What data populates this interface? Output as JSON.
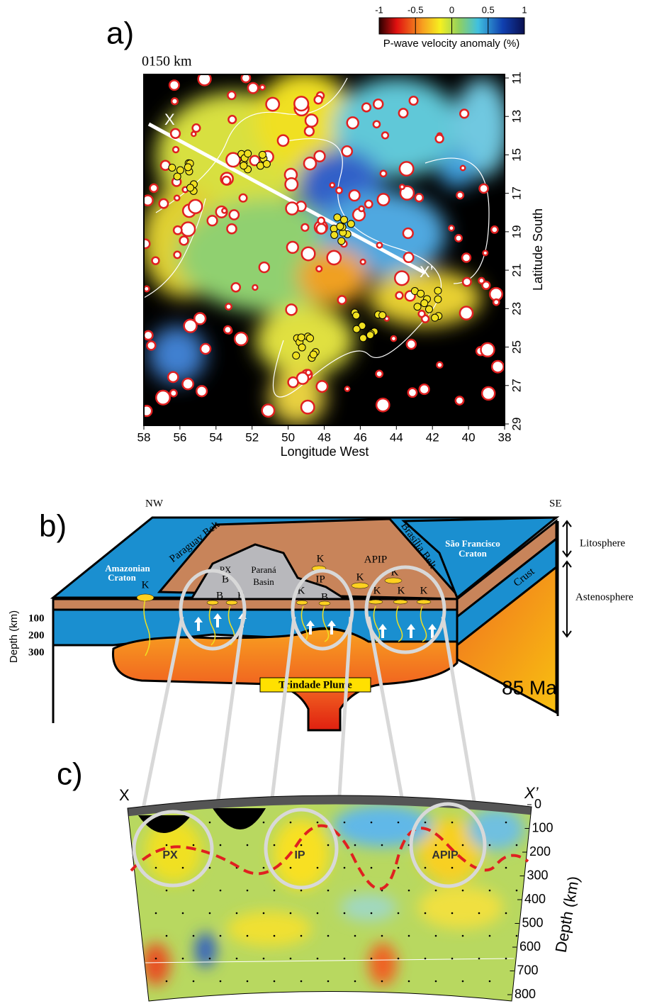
{
  "panel_a": {
    "label": "a)",
    "depth_label": "0150 km",
    "colorbar": {
      "title": "P-wave velocity anomaly (%)",
      "ticks": [
        -1,
        -0.5,
        0,
        0.5,
        1
      ]
    },
    "xticks": [
      58,
      56,
      54,
      52,
      50,
      48,
      46,
      44,
      42,
      40,
      38
    ],
    "yticks": [
      11,
      13,
      15,
      17,
      19,
      21,
      23,
      25,
      27,
      29
    ],
    "x_label": "Longitude West",
    "y_label": "Latitude South",
    "profile_start": "X",
    "profile_end": "X’"
  },
  "panel_b": {
    "label": "b)",
    "nw": "NW",
    "se": "SE",
    "amazonian": [
      "Amazonian",
      "Craton"
    ],
    "paraguay_belt": "Paraguay Belt",
    "px": "PX",
    "parana": [
      "Paraná",
      "Basin"
    ],
    "ip": "IP",
    "apip": "APIP",
    "brasilia_belt": "Brasília Belt",
    "sao_francisco": [
      "São Francisco",
      "Craton"
    ],
    "crust": "Crust",
    "litosphere": "Litosphere",
    "astenosphere": "Astenosphere",
    "plume": "Trindade Plume",
    "age": "85 Ma",
    "depth_label": "Depth (km)",
    "depth_ticks": [
      100,
      200,
      300
    ],
    "k_labels": [
      "K",
      "K",
      "K",
      "K",
      "K",
      "K",
      "K",
      "K"
    ],
    "b_labels": [
      "B",
      "B",
      "B",
      "B"
    ]
  },
  "panel_c": {
    "label": "c)",
    "x_start": "X",
    "x_end": "X’",
    "px": "PX",
    "ip": "IP",
    "apip": "APIP",
    "depth_label": "Depth (km)",
    "depth_ticks": [
      0,
      100,
      200,
      300,
      400,
      500,
      600,
      700,
      800
    ]
  }
}
